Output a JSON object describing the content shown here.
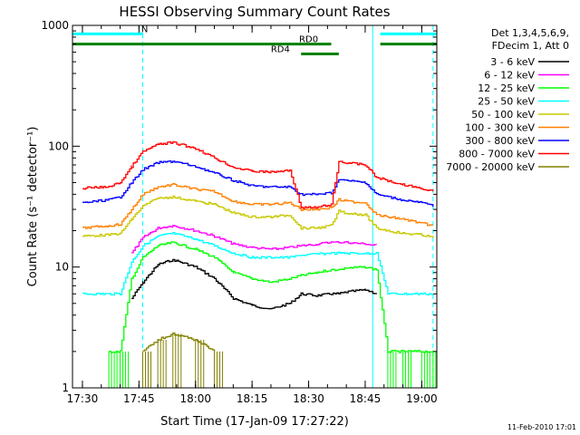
{
  "chart_data": {
    "type": "line",
    "title": "HESSI Observing Summary Count Rates",
    "xlabel": "Start Time (17-Jan-09 17:27:22)",
    "ylabel": "Count Rate (s⁻¹ detector⁻¹)",
    "yscale": "log",
    "ylim": [
      1,
      1000
    ],
    "xlim": [
      "17:27:22",
      "19:04:00"
    ],
    "x_ticks": [
      "17:30",
      "17:45",
      "18:00",
      "18:15",
      "18:30",
      "18:45",
      "19:00"
    ],
    "y_ticks": [
      "1",
      "10",
      "100",
      "1000"
    ],
    "grid": false,
    "legend_position": "right",
    "legend_header": [
      "Det 1,3,4,5,6,9,",
      "FDecim 1, Att 0"
    ],
    "footer_date": "11-Feb-2010 17:01",
    "x": [
      "17:30",
      "17:37",
      "17:40",
      "17:43",
      "17:46",
      "17:50",
      "17:54",
      "18:00",
      "18:05",
      "18:10",
      "18:15",
      "18:20",
      "18:25",
      "18:28",
      "18:32",
      "18:36",
      "18:38",
      "18:40",
      "18:45",
      "18:48",
      "18:51",
      "18:55",
      "19:00",
      "19:03"
    ],
    "series": [
      {
        "name": "3 - 6 keV",
        "color": "#000000",
        "values": [
          null,
          null,
          null,
          5.5,
          7.5,
          10.5,
          11.5,
          10.0,
          8.0,
          5.5,
          4.8,
          4.5,
          5.0,
          6.0,
          5.8,
          6.0,
          6.0,
          6.2,
          6.5,
          6.0,
          null,
          null,
          null,
          null
        ]
      },
      {
        "name": "6 - 12 keV",
        "color": "#ff00ff",
        "values": [
          null,
          null,
          null,
          13.0,
          17.5,
          21.0,
          22.0,
          20.0,
          18.0,
          15.5,
          14.5,
          14.0,
          14.5,
          15.0,
          15.5,
          16.0,
          16.0,
          16.0,
          15.5,
          15.0,
          null,
          null,
          null,
          null
        ]
      },
      {
        "name": "12 - 25 keV",
        "color": "#00ff00",
        "values": [
          null,
          2.0,
          2.0,
          8.0,
          12.0,
          15.0,
          16.0,
          14.0,
          12.0,
          9.0,
          8.0,
          7.5,
          8.0,
          8.5,
          9.0,
          9.5,
          9.5,
          9.8,
          10.0,
          9.5,
          2.0,
          2.0,
          2.0,
          2.0
        ]
      },
      {
        "name": "25 - 50 keV",
        "color": "#00ffff",
        "values": [
          6.0,
          6.0,
          6.0,
          11.0,
          15.0,
          18.0,
          19.0,
          17.0,
          15.0,
          13.0,
          12.0,
          12.0,
          12.0,
          12.5,
          12.8,
          13.0,
          13.0,
          13.0,
          13.0,
          13.0,
          6.0,
          6.0,
          6.0,
          6.0
        ]
      },
      {
        "name": "50 - 100 keV",
        "color": "#c8c800",
        "values": [
          18.0,
          18.5,
          19.0,
          25.0,
          32.0,
          37.0,
          38.0,
          35.0,
          33.0,
          28.0,
          26.0,
          26.0,
          27.0,
          21.0,
          21.0,
          22.0,
          29.0,
          28.0,
          27.0,
          21.0,
          20.0,
          19.0,
          18.5,
          17.5
        ]
      },
      {
        "name": "100 - 300 keV",
        "color": "#ff8000",
        "values": [
          21.0,
          22.0,
          22.5,
          30.0,
          40.0,
          46.0,
          48.0,
          44.0,
          42.0,
          35.0,
          33.0,
          33.0,
          34.0,
          30.0,
          30.0,
          31.0,
          36.0,
          35.0,
          34.0,
          27.0,
          26.0,
          25.0,
          23.0,
          22.0
        ]
      },
      {
        "name": "300 - 800 keV",
        "color": "#0000ff",
        "values": [
          34.0,
          36.0,
          38.0,
          50.0,
          64.0,
          73.0,
          75.0,
          68.0,
          60.0,
          52.0,
          47.0,
          46.0,
          46.0,
          40.0,
          40.0,
          41.0,
          53.0,
          52.0,
          50.0,
          40.0,
          38.0,
          36.0,
          34.0,
          32.0
        ]
      },
      {
        "name": "800 - 7000 keV",
        "color": "#ff0000",
        "values": [
          45.0,
          46.0,
          50.0,
          68.0,
          90.0,
          104.0,
          107.0,
          96.0,
          80.0,
          67.0,
          62.0,
          61.0,
          63.0,
          31.0,
          31.0,
          33.0,
          75.0,
          73.0,
          70.0,
          55.0,
          52.0,
          48.0,
          45.0,
          42.0
        ]
      },
      {
        "name": "7000 - 20000 keV",
        "color": "#808000",
        "values": [
          null,
          null,
          null,
          null,
          2.0,
          2.5,
          2.8,
          2.5,
          2.0,
          null,
          null,
          null,
          null,
          null,
          null,
          null,
          null,
          null,
          null,
          null,
          null,
          null,
          null,
          null
        ]
      }
    ],
    "annotations": [
      {
        "label": "N",
        "type": "night",
        "color": "#00ffff",
        "bars": [
          [
            "17:27:22",
            "17:46:00"
          ],
          [
            "18:49:00",
            "19:04:00"
          ]
        ],
        "y": 850,
        "label_at": "17:46:30"
      },
      {
        "label": "RD0",
        "type": "radiation-belt",
        "color": "#008000",
        "bars": [
          [
            "17:27:22",
            "18:36:00"
          ],
          [
            "18:49:00",
            "19:04:00"
          ]
        ],
        "y": 700,
        "label_at": "18:30:00"
      },
      {
        "label": "RD4",
        "type": "radiation-belt",
        "color": "#008000",
        "bars": [
          [
            "18:28:00",
            "18:38:00"
          ]
        ],
        "y": 580,
        "label_at": "18:22:30"
      }
    ],
    "night_boundaries": [
      "17:46:00",
      "19:03:00"
    ],
    "day_boundaries": [
      "17:26:00",
      "18:47:00"
    ]
  }
}
